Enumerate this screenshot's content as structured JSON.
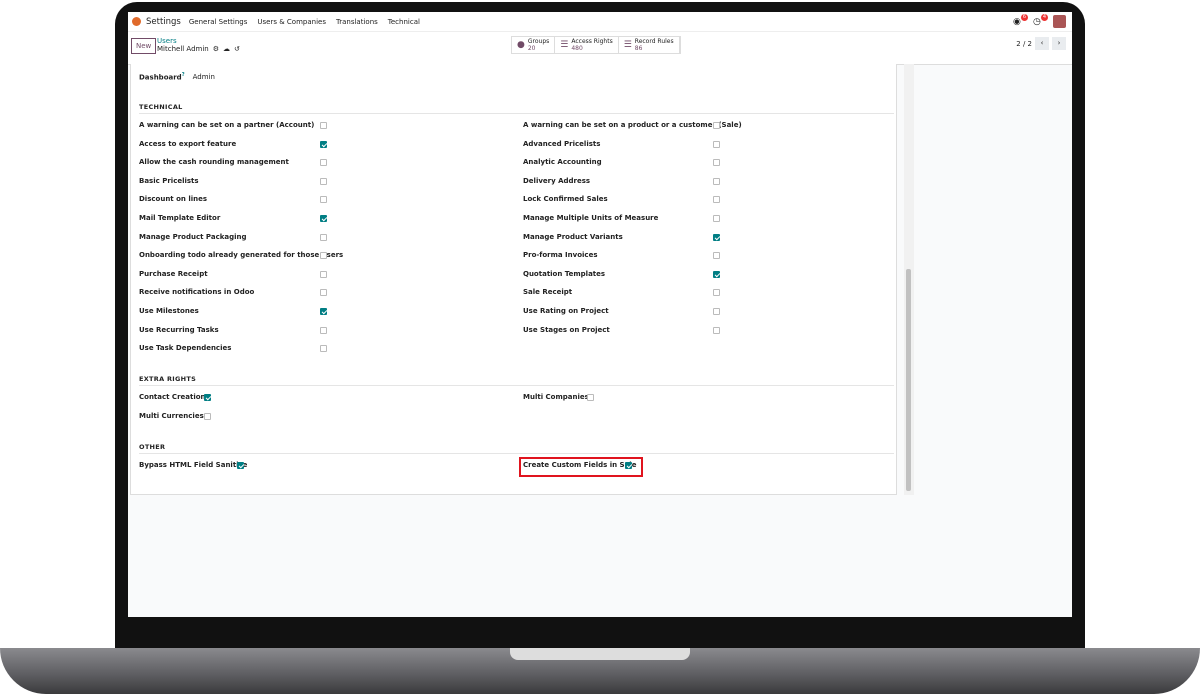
{
  "topbar": {
    "app": "Settings",
    "menu": [
      "General Settings",
      "Users & Companies",
      "Translations",
      "Technical"
    ],
    "messages_badge": "6",
    "activity_badge": "4"
  },
  "control": {
    "new": "New",
    "breadcrumb_parent": "Users",
    "breadcrumb_current": "Mitchell Admin",
    "pager": "2 / 2",
    "stats": [
      {
        "label": "Groups",
        "value": "20"
      },
      {
        "label": "Access Rights",
        "value": "480"
      },
      {
        "label": "Record Rules",
        "value": "86"
      }
    ]
  },
  "dashboard": {
    "label": "Dashboard",
    "help": "?",
    "value": "Admin"
  },
  "technical": {
    "title": "TECHNICAL",
    "left": [
      {
        "label": "A warning can be set on a partner (Account)",
        "checked": false
      },
      {
        "label": "Access to export feature",
        "checked": true
      },
      {
        "label": "Allow the cash rounding management",
        "checked": false
      },
      {
        "label": "Basic Pricelists",
        "checked": false
      },
      {
        "label": "Discount on lines",
        "checked": false
      },
      {
        "label": "Mail Template Editor",
        "checked": true
      },
      {
        "label": "Manage Product Packaging",
        "checked": false
      },
      {
        "label": "Onboarding todo already generated for those users",
        "checked": false
      },
      {
        "label": "Purchase Receipt",
        "checked": false
      },
      {
        "label": "Receive notifications in Odoo",
        "checked": false
      },
      {
        "label": "Use Milestones",
        "checked": true
      },
      {
        "label": "Use Recurring Tasks",
        "checked": false
      },
      {
        "label": "Use Task Dependencies",
        "checked": false
      }
    ],
    "right": [
      {
        "label": "A warning can be set on a product or a customer (Sale)",
        "checked": false
      },
      {
        "label": "Advanced Pricelists",
        "checked": false
      },
      {
        "label": "Analytic Accounting",
        "checked": false
      },
      {
        "label": "Delivery Address",
        "checked": false
      },
      {
        "label": "Lock Confirmed Sales",
        "checked": false
      },
      {
        "label": "Manage Multiple Units of Measure",
        "checked": false
      },
      {
        "label": "Manage Product Variants",
        "checked": true
      },
      {
        "label": "Pro-forma Invoices",
        "checked": false
      },
      {
        "label": "Quotation Templates",
        "checked": true
      },
      {
        "label": "Sale Receipt",
        "checked": false
      },
      {
        "label": "Use Rating on Project",
        "checked": false
      },
      {
        "label": "Use Stages on Project",
        "checked": false
      }
    ]
  },
  "extra": {
    "title": "EXTRA RIGHTS",
    "left": [
      {
        "label": "Contact Creation",
        "checked": true
      },
      {
        "label": "Multi Currencies",
        "checked": false
      }
    ],
    "right": [
      {
        "label": "Multi Companies",
        "checked": false
      }
    ]
  },
  "other": {
    "title": "OTHER",
    "left": [
      {
        "label": "Bypass HTML Field Sanitize",
        "checked": true
      }
    ],
    "right": [
      {
        "label": "Create Custom Fields in Sale",
        "checked": true
      }
    ]
  },
  "colors": {
    "accent": "#017e84",
    "brand": "#714b67",
    "highlight": "#e0141e"
  }
}
